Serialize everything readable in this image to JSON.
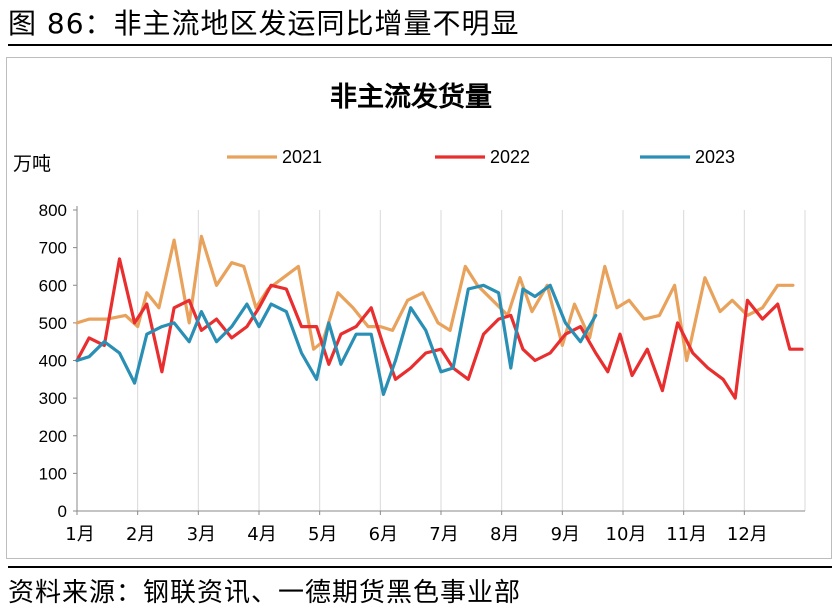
{
  "figure": {
    "title": "图 86：非主流地区发运同比增量不明显",
    "source": "资料来源：钢联资讯、一德期货黑色事业部"
  },
  "chart_data": {
    "type": "line",
    "title": "非主流发货量",
    "ylabel": "万吨",
    "ylim": [
      0,
      800
    ],
    "yticks": [
      0,
      100,
      200,
      300,
      400,
      500,
      600,
      700,
      800
    ],
    "xlim": [
      1,
      13
    ],
    "x_tick_labels": [
      "1月",
      "2月",
      "3月",
      "4月",
      "5月",
      "6月",
      "7月",
      "8月",
      "9月",
      "10月",
      "11月",
      "12月"
    ],
    "grid": "vertical",
    "legend_position": "top",
    "series": [
      {
        "name": "2021",
        "color": "#E8A25C",
        "points": [
          [
            1.0,
            500
          ],
          [
            1.2,
            510
          ],
          [
            1.5,
            510
          ],
          [
            1.8,
            520
          ],
          [
            2.0,
            490
          ],
          [
            2.15,
            580
          ],
          [
            2.35,
            540
          ],
          [
            2.6,
            720
          ],
          [
            2.85,
            500
          ],
          [
            3.05,
            730
          ],
          [
            3.3,
            600
          ],
          [
            3.55,
            660
          ],
          [
            3.75,
            650
          ],
          [
            3.95,
            540
          ],
          [
            4.15,
            590
          ],
          [
            4.4,
            620
          ],
          [
            4.65,
            650
          ],
          [
            4.9,
            430
          ],
          [
            5.05,
            450
          ],
          [
            5.3,
            580
          ],
          [
            5.55,
            540
          ],
          [
            5.8,
            490
          ],
          [
            6.0,
            490
          ],
          [
            6.2,
            480
          ],
          [
            6.45,
            560
          ],
          [
            6.7,
            580
          ],
          [
            6.95,
            500
          ],
          [
            7.15,
            480
          ],
          [
            7.4,
            650
          ],
          [
            7.6,
            600
          ],
          [
            7.85,
            560
          ],
          [
            8.1,
            520
          ],
          [
            8.3,
            620
          ],
          [
            8.5,
            530
          ],
          [
            8.75,
            600
          ],
          [
            9.0,
            440
          ],
          [
            9.2,
            550
          ],
          [
            9.45,
            460
          ],
          [
            9.7,
            650
          ],
          [
            9.9,
            540
          ],
          [
            10.1,
            560
          ],
          [
            10.35,
            510
          ],
          [
            10.6,
            520
          ],
          [
            10.85,
            600
          ],
          [
            11.05,
            400
          ],
          [
            11.35,
            620
          ],
          [
            11.6,
            530
          ],
          [
            11.8,
            560
          ],
          [
            12.05,
            520
          ],
          [
            12.3,
            540
          ],
          [
            12.55,
            600
          ],
          [
            12.8,
            600
          ]
        ]
      },
      {
        "name": "2022",
        "color": "#E82E2E",
        "points": [
          [
            1.0,
            400
          ],
          [
            1.2,
            460
          ],
          [
            1.45,
            440
          ],
          [
            1.7,
            670
          ],
          [
            1.95,
            500
          ],
          [
            2.15,
            550
          ],
          [
            2.4,
            370
          ],
          [
            2.6,
            540
          ],
          [
            2.85,
            560
          ],
          [
            3.05,
            480
          ],
          [
            3.3,
            510
          ],
          [
            3.55,
            460
          ],
          [
            3.8,
            490
          ],
          [
            4.0,
            540
          ],
          [
            4.2,
            600
          ],
          [
            4.45,
            590
          ],
          [
            4.7,
            490
          ],
          [
            4.95,
            490
          ],
          [
            5.15,
            390
          ],
          [
            5.35,
            470
          ],
          [
            5.6,
            490
          ],
          [
            5.85,
            540
          ],
          [
            6.05,
            440
          ],
          [
            6.25,
            350
          ],
          [
            6.5,
            380
          ],
          [
            6.75,
            420
          ],
          [
            7.0,
            430
          ],
          [
            7.2,
            380
          ],
          [
            7.45,
            350
          ],
          [
            7.7,
            470
          ],
          [
            7.95,
            510
          ],
          [
            8.15,
            520
          ],
          [
            8.35,
            430
          ],
          [
            8.55,
            400
          ],
          [
            8.8,
            420
          ],
          [
            9.05,
            470
          ],
          [
            9.3,
            490
          ],
          [
            9.55,
            420
          ],
          [
            9.75,
            370
          ],
          [
            9.95,
            470
          ],
          [
            10.15,
            360
          ],
          [
            10.4,
            430
          ],
          [
            10.65,
            320
          ],
          [
            10.9,
            500
          ],
          [
            11.15,
            420
          ],
          [
            11.4,
            380
          ],
          [
            11.65,
            350
          ],
          [
            11.85,
            300
          ],
          [
            12.05,
            560
          ],
          [
            12.3,
            510
          ],
          [
            12.55,
            550
          ],
          [
            12.75,
            430
          ],
          [
            12.95,
            430
          ]
        ]
      },
      {
        "name": "2023",
        "color": "#2A8FB5",
        "points": [
          [
            1.0,
            400
          ],
          [
            1.2,
            410
          ],
          [
            1.45,
            450
          ],
          [
            1.7,
            420
          ],
          [
            1.95,
            340
          ],
          [
            2.15,
            470
          ],
          [
            2.4,
            490
          ],
          [
            2.6,
            500
          ],
          [
            2.85,
            450
          ],
          [
            3.05,
            530
          ],
          [
            3.3,
            450
          ],
          [
            3.55,
            490
          ],
          [
            3.8,
            550
          ],
          [
            4.0,
            490
          ],
          [
            4.2,
            550
          ],
          [
            4.45,
            530
          ],
          [
            4.7,
            420
          ],
          [
            4.95,
            350
          ],
          [
            5.15,
            500
          ],
          [
            5.35,
            390
          ],
          [
            5.6,
            470
          ],
          [
            5.85,
            470
          ],
          [
            6.05,
            310
          ],
          [
            6.25,
            400
          ],
          [
            6.5,
            540
          ],
          [
            6.75,
            480
          ],
          [
            7.0,
            370
          ],
          [
            7.2,
            380
          ],
          [
            7.45,
            590
          ],
          [
            7.7,
            600
          ],
          [
            7.95,
            580
          ],
          [
            8.15,
            380
          ],
          [
            8.35,
            590
          ],
          [
            8.55,
            570
          ],
          [
            8.8,
            600
          ],
          [
            9.05,
            500
          ],
          [
            9.3,
            450
          ],
          [
            9.55,
            520
          ]
        ]
      }
    ]
  }
}
